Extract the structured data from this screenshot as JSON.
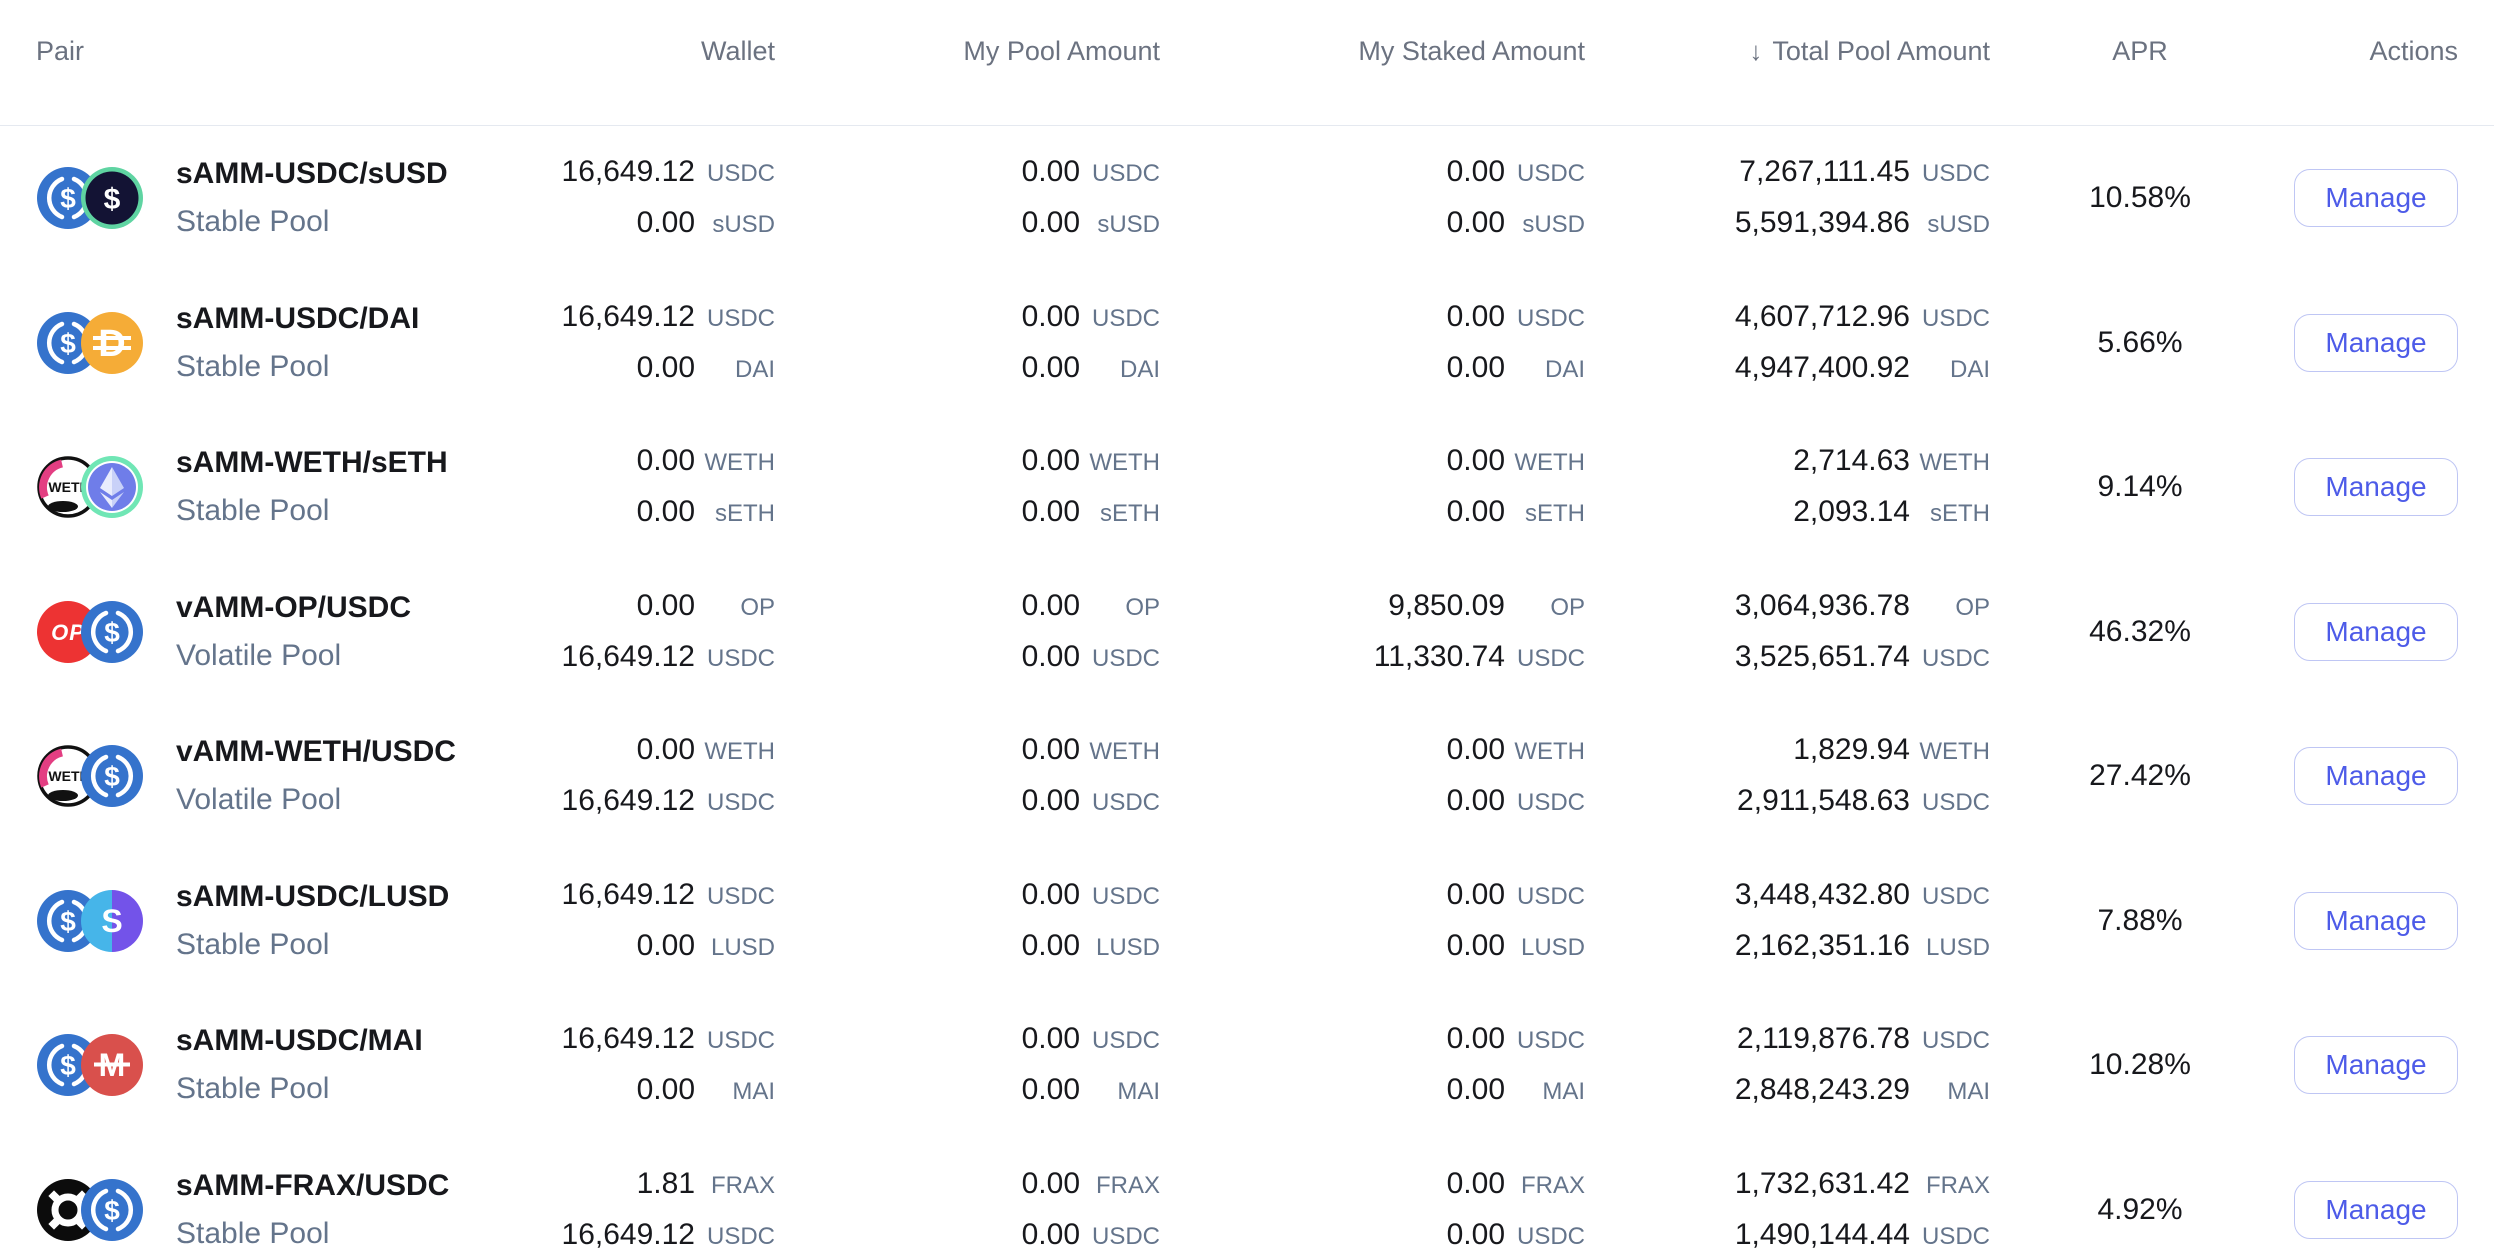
{
  "colors": {
    "accent_indigo": "#4D5BE8",
    "button_border": "#BFC6F4",
    "text_primary": "#17181C",
    "text_secondary": "#64748B",
    "header_text": "#6B7280",
    "divider": "#E5E9F0"
  },
  "icons": {
    "usdc": {
      "bg": "#3573CC"
    },
    "susd": {
      "bg": "#131334",
      "ring": "#5FD4A2"
    },
    "dai": {
      "bg": "#F5AC37"
    },
    "weth": {
      "bg": "#FFFFFF",
      "accent": "#E33E82"
    },
    "seth": {
      "bg": "#6F7DE9",
      "ring": "#70E6B5"
    },
    "op": {
      "bg": "#ED3333"
    },
    "lusd": {
      "left": "#46B5E9",
      "right": "#7353E9"
    },
    "mai": {
      "bg": "#D9504C"
    },
    "frax": {
      "bg": "#0C0C0C"
    }
  },
  "header": {
    "pair": "Pair",
    "wallet": "Wallet",
    "my_pool": "My Pool Amount",
    "my_staked": "My Staked Amount",
    "total_pool": "Total Pool Amount",
    "apr": "APR",
    "actions": "Actions",
    "sort_indicator": "↓",
    "sorted_column": "total_pool"
  },
  "rows": [
    {
      "name": "sAMM-USDC/sUSD",
      "pool_type": "Stable Pool",
      "tokens": [
        "USDC",
        "sUSD"
      ],
      "icons": [
        "usdc",
        "susd"
      ],
      "wallet": [
        "16,649.12",
        "0.00"
      ],
      "my_pool": [
        "0.00",
        "0.00"
      ],
      "my_staked": [
        "0.00",
        "0.00"
      ],
      "total_pool": [
        "7,267,111.45",
        "5,591,394.86"
      ],
      "apr": "10.58%",
      "action": "Manage"
    },
    {
      "name": "sAMM-USDC/DAI",
      "pool_type": "Stable Pool",
      "tokens": [
        "USDC",
        "DAI"
      ],
      "icons": [
        "usdc",
        "dai"
      ],
      "wallet": [
        "16,649.12",
        "0.00"
      ],
      "my_pool": [
        "0.00",
        "0.00"
      ],
      "my_staked": [
        "0.00",
        "0.00"
      ],
      "total_pool": [
        "4,607,712.96",
        "4,947,400.92"
      ],
      "apr": "5.66%",
      "action": "Manage"
    },
    {
      "name": "sAMM-WETH/sETH",
      "pool_type": "Stable Pool",
      "tokens": [
        "WETH",
        "sETH"
      ],
      "icons": [
        "weth",
        "seth"
      ],
      "wallet": [
        "0.00",
        "0.00"
      ],
      "my_pool": [
        "0.00",
        "0.00"
      ],
      "my_staked": [
        "0.00",
        "0.00"
      ],
      "total_pool": [
        "2,714.63",
        "2,093.14"
      ],
      "apr": "9.14%",
      "action": "Manage"
    },
    {
      "name": "vAMM-OP/USDC",
      "pool_type": "Volatile Pool",
      "tokens": [
        "OP",
        "USDC"
      ],
      "icons": [
        "op",
        "usdc"
      ],
      "wallet": [
        "0.00",
        "16,649.12"
      ],
      "my_pool": [
        "0.00",
        "0.00"
      ],
      "my_staked": [
        "9,850.09",
        "11,330.74"
      ],
      "total_pool": [
        "3,064,936.78",
        "3,525,651.74"
      ],
      "apr": "46.32%",
      "action": "Manage"
    },
    {
      "name": "vAMM-WETH/USDC",
      "pool_type": "Volatile Pool",
      "tokens": [
        "WETH",
        "USDC"
      ],
      "icons": [
        "weth",
        "usdc"
      ],
      "wallet": [
        "0.00",
        "16,649.12"
      ],
      "my_pool": [
        "0.00",
        "0.00"
      ],
      "my_staked": [
        "0.00",
        "0.00"
      ],
      "total_pool": [
        "1,829.94",
        "2,911,548.63"
      ],
      "apr": "27.42%",
      "action": "Manage"
    },
    {
      "name": "sAMM-USDC/LUSD",
      "pool_type": "Stable Pool",
      "tokens": [
        "USDC",
        "LUSD"
      ],
      "icons": [
        "usdc",
        "lusd"
      ],
      "wallet": [
        "16,649.12",
        "0.00"
      ],
      "my_pool": [
        "0.00",
        "0.00"
      ],
      "my_staked": [
        "0.00",
        "0.00"
      ],
      "total_pool": [
        "3,448,432.80",
        "2,162,351.16"
      ],
      "apr": "7.88%",
      "action": "Manage"
    },
    {
      "name": "sAMM-USDC/MAI",
      "pool_type": "Stable Pool",
      "tokens": [
        "USDC",
        "MAI"
      ],
      "icons": [
        "usdc",
        "mai"
      ],
      "wallet": [
        "16,649.12",
        "0.00"
      ],
      "my_pool": [
        "0.00",
        "0.00"
      ],
      "my_staked": [
        "0.00",
        "0.00"
      ],
      "total_pool": [
        "2,119,876.78",
        "2,848,243.29"
      ],
      "apr": "10.28%",
      "action": "Manage"
    },
    {
      "name": "sAMM-FRAX/USDC",
      "pool_type": "Stable Pool",
      "tokens": [
        "FRAX",
        "USDC"
      ],
      "icons": [
        "frax",
        "usdc"
      ],
      "wallet": [
        "1.81",
        "16,649.12"
      ],
      "my_pool": [
        "0.00",
        "0.00"
      ],
      "my_staked": [
        "0.00",
        "0.00"
      ],
      "total_pool": [
        "1,732,631.42",
        "1,490,144.44"
      ],
      "apr": "4.92%",
      "action": "Manage"
    }
  ]
}
